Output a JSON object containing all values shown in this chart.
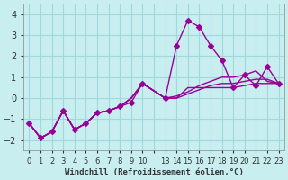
{
  "background_color": "#c8eef0",
  "grid_color": "#a0d8dc",
  "line_color": "#990099",
  "marker_color": "#990099",
  "xlabel": "Windchill (Refroidissement éolien,°C)",
  "yticks": [
    -2,
    -1,
    0,
    1,
    2,
    3,
    4
  ],
  "xtick_labels": [
    "0",
    "1",
    "2",
    "3",
    "4",
    "5",
    "6",
    "7",
    "8",
    "9",
    "10",
    "",
    "13",
    "14",
    "15",
    "16",
    "17",
    "18",
    "19",
    "20",
    "21",
    "22",
    "23"
  ],
  "xtick_positions": [
    0,
    1,
    2,
    3,
    4,
    5,
    6,
    7,
    8,
    9,
    10,
    11,
    12,
    13,
    14,
    15,
    16,
    17,
    18,
    19,
    20,
    21,
    22
  ],
  "line1_x": [
    0,
    1,
    2,
    3,
    4,
    5,
    6,
    7,
    8,
    9,
    10,
    12,
    13,
    14,
    15,
    16,
    17,
    18,
    19,
    20,
    21,
    22
  ],
  "line1_y": [
    -1.2,
    -1.9,
    -1.6,
    -0.6,
    -1.5,
    -1.2,
    -0.7,
    -0.6,
    -0.4,
    -0.2,
    0.7,
    0.0,
    2.5,
    3.7,
    3.4,
    2.5,
    1.8,
    0.5,
    1.1,
    0.6,
    1.5,
    0.7
  ],
  "line2_x": [
    0,
    1,
    2,
    3,
    4,
    5,
    6,
    7,
    8,
    9,
    10,
    12,
    13,
    14,
    15,
    16,
    17,
    18,
    19,
    20,
    21,
    22
  ],
  "line2_y": [
    -1.2,
    -1.9,
    -1.6,
    -0.6,
    -1.5,
    -1.2,
    -0.7,
    -0.6,
    -0.4,
    0.0,
    0.7,
    0.0,
    0.0,
    0.5,
    0.5,
    0.5,
    0.5,
    0.5,
    0.6,
    0.7,
    0.7,
    0.7
  ],
  "line3_x": [
    0,
    1,
    2,
    3,
    4,
    5,
    6,
    7,
    8,
    9,
    10,
    12,
    13,
    14,
    15,
    16,
    17,
    18,
    19,
    20,
    21,
    22
  ],
  "line3_y": [
    -1.2,
    -1.9,
    -1.6,
    -0.6,
    -1.5,
    -1.2,
    -0.7,
    -0.6,
    -0.4,
    0.0,
    0.7,
    0.0,
    0.0,
    0.2,
    0.4,
    0.6,
    0.7,
    0.7,
    0.8,
    0.9,
    0.9,
    0.7
  ],
  "line4_x": [
    0,
    1,
    2,
    3,
    4,
    5,
    6,
    7,
    8,
    9,
    10,
    12,
    13,
    14,
    15,
    16,
    17,
    18,
    19,
    20,
    21,
    22
  ],
  "line4_y": [
    -1.2,
    -1.9,
    -1.6,
    -0.6,
    -1.5,
    -1.2,
    -0.7,
    -0.6,
    -0.4,
    0.0,
    0.7,
    0.0,
    0.1,
    0.3,
    0.6,
    0.8,
    1.0,
    1.0,
    1.1,
    1.3,
    0.8,
    0.7
  ]
}
